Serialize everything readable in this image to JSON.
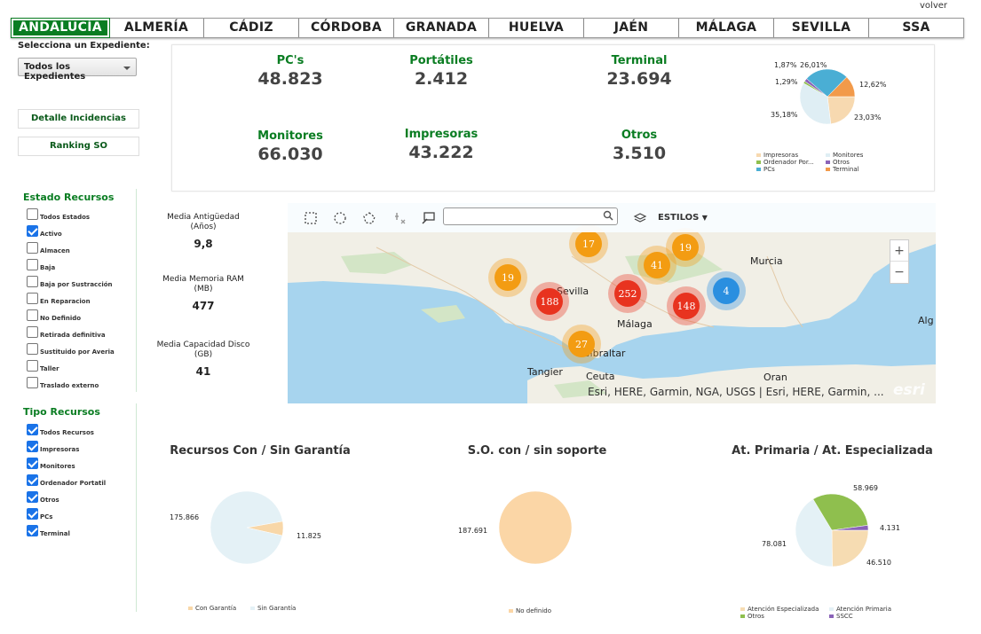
{
  "header": {
    "volver": "volver",
    "tabs": [
      {
        "label": "ANDALUCÍA",
        "active": true
      },
      {
        "label": "ALMERÍA",
        "active": false
      },
      {
        "label": "CÁDIZ",
        "active": false
      },
      {
        "label": "CÓRDOBA",
        "active": false
      },
      {
        "label": "GRANADA",
        "active": false
      },
      {
        "label": "HUELVA",
        "active": false
      },
      {
        "label": "JAÉN",
        "active": false
      },
      {
        "label": "MÁLAGA",
        "active": false
      },
      {
        "label": "SEVILLA",
        "active": false
      },
      {
        "label": "SSA",
        "active": false
      }
    ]
  },
  "sidebar": {
    "expediente_label": "Selecciona un Expediente:",
    "expediente_value": "Todos los Expedientes",
    "detalle_button": "Detalle Incidencias",
    "ranking_button": "Ranking SO",
    "estado": {
      "title": "Estado Recursos",
      "items": [
        {
          "label": "Todos Estados",
          "checked": false
        },
        {
          "label": "Activo",
          "checked": true
        },
        {
          "label": "Almacen",
          "checked": false
        },
        {
          "label": "Baja",
          "checked": false
        },
        {
          "label": "Baja por Sustracción",
          "checked": false
        },
        {
          "label": "En Reparacion",
          "checked": false
        },
        {
          "label": "No Definido",
          "checked": false
        },
        {
          "label": "Retirada definitiva",
          "checked": false
        },
        {
          "label": "Sustituido por Averia",
          "checked": false
        },
        {
          "label": "Taller",
          "checked": false
        },
        {
          "label": "Traslado externo",
          "checked": false
        }
      ]
    },
    "tipo": {
      "title": "Tipo Recursos",
      "items": [
        {
          "label": "Todos Recursos",
          "checked": true
        },
        {
          "label": "Impresoras",
          "checked": true
        },
        {
          "label": "Monitores",
          "checked": true
        },
        {
          "label": "Ordenador Portatil",
          "checked": true
        },
        {
          "label": "Otros",
          "checked": true
        },
        {
          "label": "PCs",
          "checked": true
        },
        {
          "label": "Terminal",
          "checked": true
        }
      ]
    }
  },
  "kpis": [
    {
      "title": "PC's",
      "value": "48.823"
    },
    {
      "title": "Portátiles",
      "value": "2.412"
    },
    {
      "title": "Terminal",
      "value": "23.694"
    },
    {
      "title": "Monitores",
      "value": "66.030"
    },
    {
      "title": "Impresoras",
      "value": "43.222"
    },
    {
      "title": "Otros",
      "value": "3.510"
    }
  ],
  "averages": [
    {
      "label1": "Media Antigüedad",
      "label2": "(Años)",
      "value": "9,8"
    },
    {
      "label1": "Media Memoria RAM",
      "label2": "(MB)",
      "value": "477"
    },
    {
      "label1": "Media Capacidad Disco",
      "label2": "(GB)",
      "value": "41"
    }
  ],
  "map": {
    "search_placeholder": "",
    "estilos_label": "ESTILOS",
    "zoom_in": "+",
    "zoom_out": "−",
    "attribution": "Esri, HERE, Garmin, NGA, USGS | Esri, HERE, Garmin, ...",
    "logo": "esri",
    "cities": [
      "Murcia",
      "Alg",
      "Sevilla",
      "Málaga",
      "Gibraltar",
      "Tangier",
      "Ceuta",
      "Oran"
    ],
    "clusters": [
      {
        "count": 17,
        "color": "#f39c12"
      },
      {
        "count": 19,
        "color": "#f39c12"
      },
      {
        "count": 41,
        "color": "#f39c12"
      },
      {
        "count": 19,
        "color": "#f39c12"
      },
      {
        "count": 188,
        "color": "#e8331f"
      },
      {
        "count": 252,
        "color": "#e8331f"
      },
      {
        "count": 148,
        "color": "#e8331f"
      },
      {
        "count": 4,
        "color": "#2a8fe0"
      },
      {
        "count": 27,
        "color": "#f39c12"
      }
    ]
  },
  "chart_data": [
    {
      "type": "pie",
      "title": "",
      "categories": [
        "Impresoras",
        "Monitores",
        "Ordenador Por...",
        "Otros",
        "PCs",
        "Terminal"
      ],
      "values": [
        23.03,
        35.18,
        1.29,
        1.87,
        26.01,
        12.62
      ],
      "labels": [
        "23,03%",
        "35,18%",
        "1,29%",
        "1,87%",
        "26,01%",
        "12,62%"
      ],
      "colors": [
        "#f7d9b0",
        "#dfeef4",
        "#8fbf4e",
        "#8a63b8",
        "#4aaed4",
        "#f29a4a"
      ]
    },
    {
      "type": "pie",
      "title": "Recursos Con / Sin Garantía",
      "categories": [
        "Con Garantía",
        "Sin Garantía"
      ],
      "values": [
        11825,
        175866
      ],
      "labels": [
        "11.825",
        "175.866"
      ],
      "colors": [
        "#f8d7a8",
        "#e4f1f6"
      ]
    },
    {
      "type": "pie",
      "title": "S.O. con / sin soporte",
      "categories": [
        "No definido"
      ],
      "values": [
        187691
      ],
      "labels": [
        "187.691"
      ],
      "colors": [
        "#fbd6a6"
      ]
    },
    {
      "type": "pie",
      "title": "At. Primaria / At. Especializada",
      "categories": [
        "Atención Especializada",
        "Atención Primaria",
        "Otros",
        "SSCC"
      ],
      "values": [
        46510,
        78081,
        58969,
        4131
      ],
      "labels": [
        "46.510",
        "78.081",
        "58.969",
        "4.131"
      ],
      "colors": [
        "#f6dcb2",
        "#e4f1f6",
        "#8fbf4e",
        "#8a63b8"
      ]
    }
  ]
}
